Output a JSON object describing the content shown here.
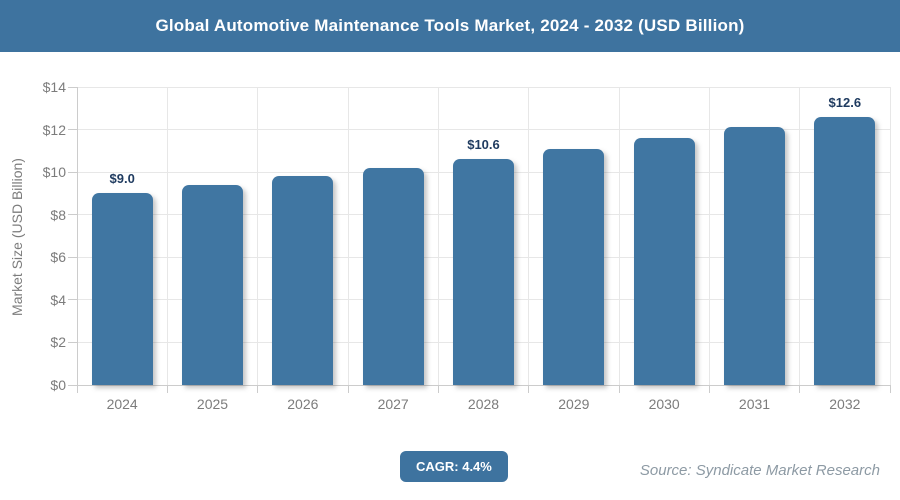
{
  "header": {
    "title": "Global Automotive Maintenance Tools Market, 2024 - 2032 (USD Billion)"
  },
  "chart_data": {
    "type": "bar",
    "title": "Global Automotive Maintenance Tools Market, 2024 - 2032 (USD Billion)",
    "categories": [
      "2024",
      "2025",
      "2026",
      "2027",
      "2028",
      "2029",
      "2030",
      "2031",
      "2032"
    ],
    "values": [
      9.0,
      9.4,
      9.8,
      10.2,
      10.6,
      11.1,
      11.6,
      12.1,
      12.6
    ],
    "point_labels": [
      "$9.0",
      "",
      "",
      "",
      "$10.6",
      "",
      "",
      "",
      "$12.6"
    ],
    "xlabel": "",
    "ylabel": "Market Size (USD Billion)",
    "ylim": [
      0,
      14
    ],
    "y_tick_step": 2,
    "y_ticks": [
      "$0",
      "$2",
      "$4",
      "$6",
      "$8",
      "$10",
      "$12",
      "$14"
    ],
    "grid": true,
    "legend": "none",
    "bar_color": "#4076a2",
    "label_color": "#1e3a5f"
  },
  "footer": {
    "cagr_label": "CAGR: 4.4%",
    "source": "Source: Syndicate Market Research"
  },
  "colors": {
    "accent": "#3e739f",
    "axis_text": "#7c7c7c",
    "gridline": "#e7e7e7",
    "axis_line": "#cccccc"
  }
}
